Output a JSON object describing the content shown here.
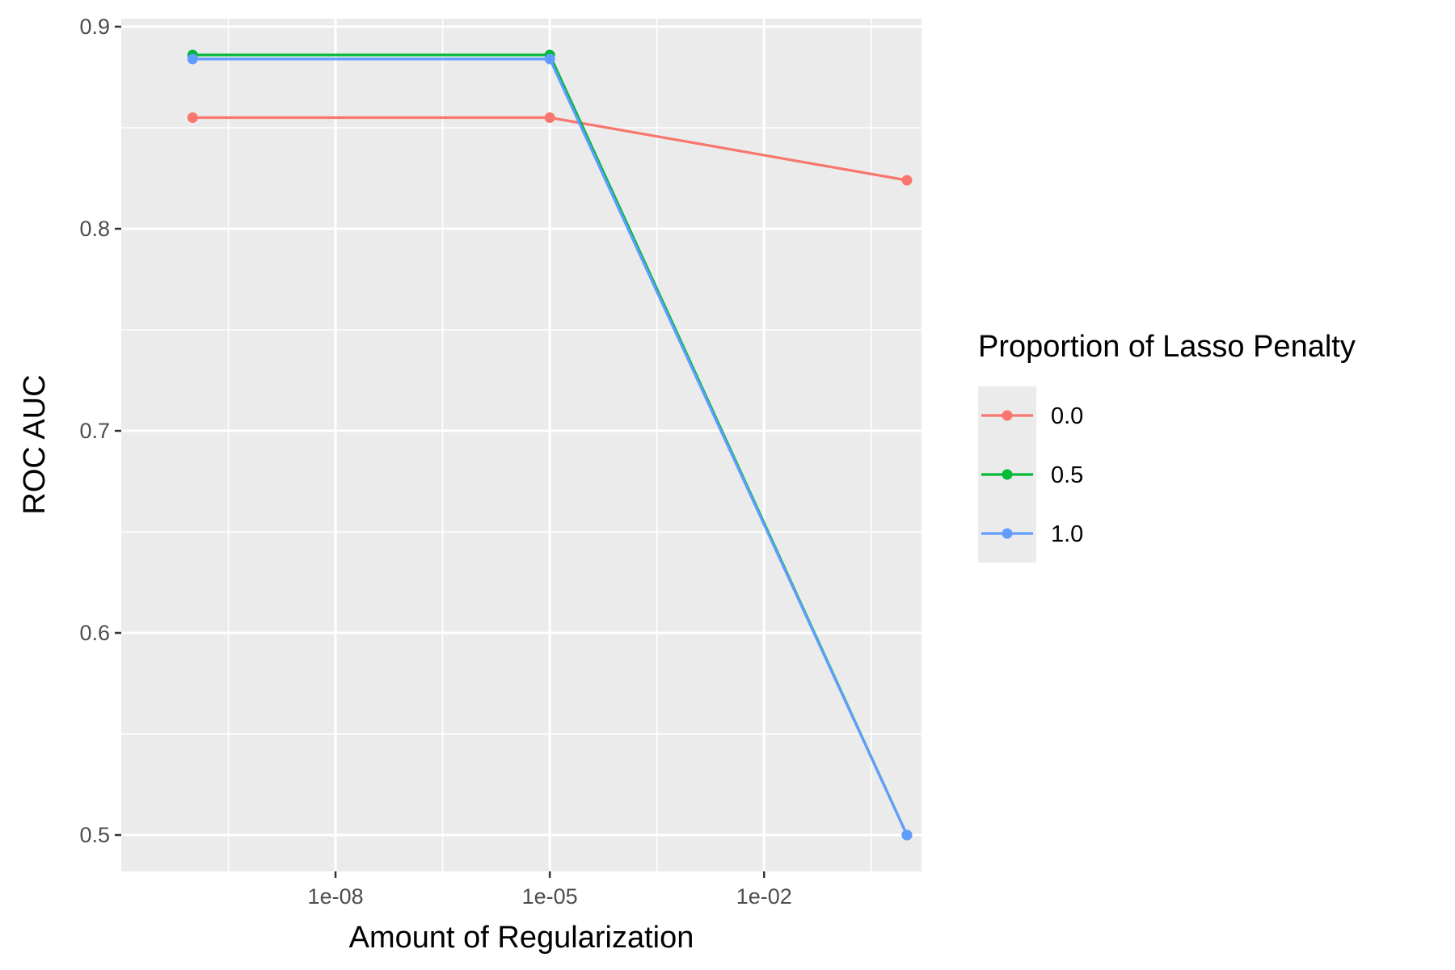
{
  "chart_data": {
    "type": "line",
    "xlabel": "Amount of Regularization",
    "ylabel": "ROC AUC",
    "x_scale": "log10",
    "x_tick_labels": [
      "1e-08",
      "1e-05",
      "1e-02"
    ],
    "x_ticks": [
      1e-08,
      1e-05,
      0.01
    ],
    "y_tick_labels": [
      "0.5",
      "0.6",
      "0.7",
      "0.8",
      "0.9"
    ],
    "y_ticks": [
      0.5,
      0.6,
      0.7,
      0.8,
      0.9
    ],
    "xlim": [
      1e-11,
      1.6
    ],
    "ylim": [
      0.482,
      0.904
    ],
    "grid": true,
    "panel_background": "#ebebeb",
    "legend": {
      "title": "Proportion of Lasso Penalty",
      "position": "right"
    },
    "x": [
      1e-10,
      1e-05,
      1
    ],
    "series": [
      {
        "name": "0.0",
        "color": "#f8766d",
        "values": [
          0.855,
          0.855,
          0.824
        ]
      },
      {
        "name": "0.5",
        "color": "#00ba38",
        "values": [
          0.886,
          0.886,
          0.5
        ]
      },
      {
        "name": "1.0",
        "color": "#619cff",
        "values": [
          0.884,
          0.884,
          0.5
        ]
      }
    ]
  }
}
